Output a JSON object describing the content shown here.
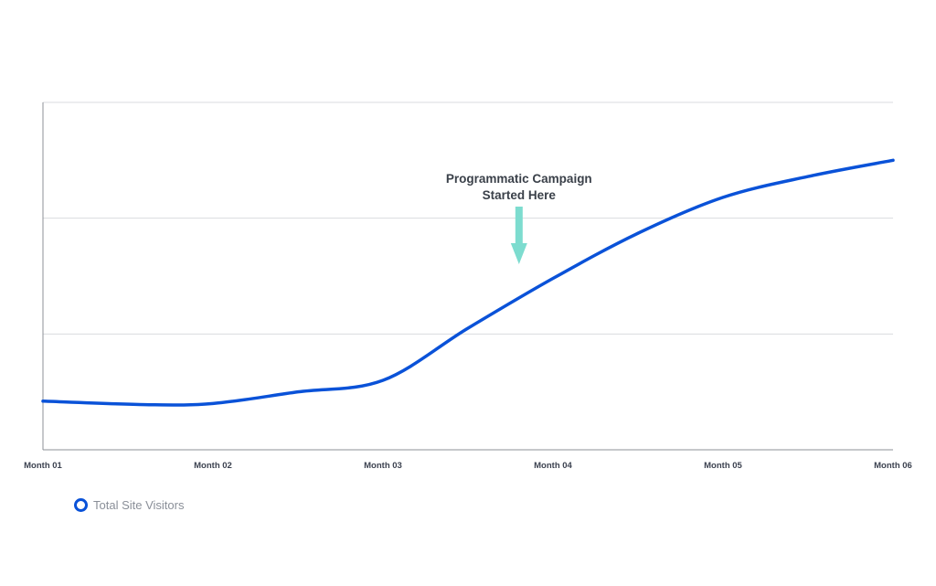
{
  "chart_data": {
    "type": "line",
    "title": "",
    "xlabel": "",
    "ylabel": "",
    "categories": [
      "Month 01",
      "Month 02",
      "Month 03",
      "Month 04",
      "Month 05",
      "Month 06"
    ],
    "x": [
      1,
      1.6,
      2,
      2.5,
      3,
      3.5,
      4,
      4.5,
      5,
      5.5,
      6
    ],
    "series": [
      {
        "name": "Total Site Visitors",
        "color": "#0a52d8",
        "values": [
          0.42,
          0.39,
          0.4,
          0.5,
          0.6,
          1.05,
          1.48,
          1.87,
          2.18,
          2.36,
          2.5
        ]
      }
    ],
    "ylim": [
      0,
      3
    ],
    "grid": {
      "y": true,
      "x": false
    },
    "annotation": {
      "lines": [
        "Programmatic Campaign",
        "Started Here"
      ],
      "x": 3.8,
      "arrow_color": "#7ddccf"
    },
    "legend": {
      "placement": "bottom-left"
    }
  }
}
